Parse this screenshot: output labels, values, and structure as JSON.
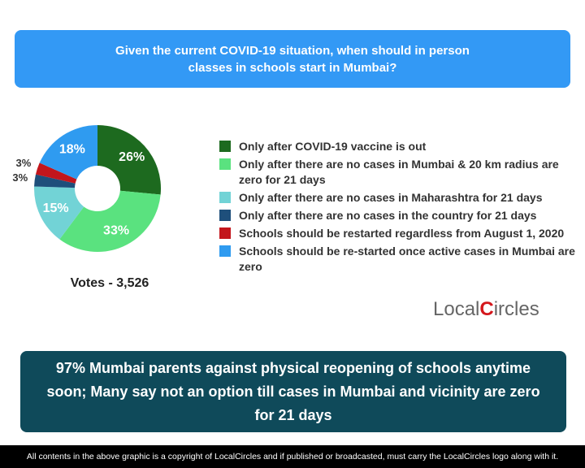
{
  "chart_data": {
    "type": "pie",
    "donut": true,
    "title": "Given the current COVID-19 situation, when should in person classes in schools start in Mumbai?",
    "categories": [
      "Only after COVID-19 vaccine is out",
      "Only after there are no cases in Mumbai & 20 km radius are zero for 21 days",
      "Only after there are no cases in Maharashtra for 21 days",
      "Only after there are no cases in the country for 21 days",
      "Schools should be restarted regardless from August 1, 2020",
      "Schools should be re-started once active cases in Mumbai are zero"
    ],
    "values": [
      26,
      33,
      15,
      3,
      3,
      18
    ],
    "value_labels": [
      "26%",
      "33%",
      "15%",
      "3%",
      "3%",
      "18%"
    ],
    "colors": [
      "#1d6a1f",
      "#5ae27f",
      "#72d3d6",
      "#1e4f7b",
      "#c3161c",
      "#2f9bf0"
    ],
    "votes_label": "Votes - 3,526"
  },
  "headline": "97% Mumbai parents against physical reopening of schools anytime soon; Many say not an option till cases in Mumbai and vicinity are zero for 21 days",
  "logo": {
    "pre": "Local",
    "mark": "C",
    "post": "ircles"
  },
  "footer": "All contents in the above graphic is a copyright of LocalCircles and if published or broadcasted, must carry the LocalCircles logo along with it."
}
